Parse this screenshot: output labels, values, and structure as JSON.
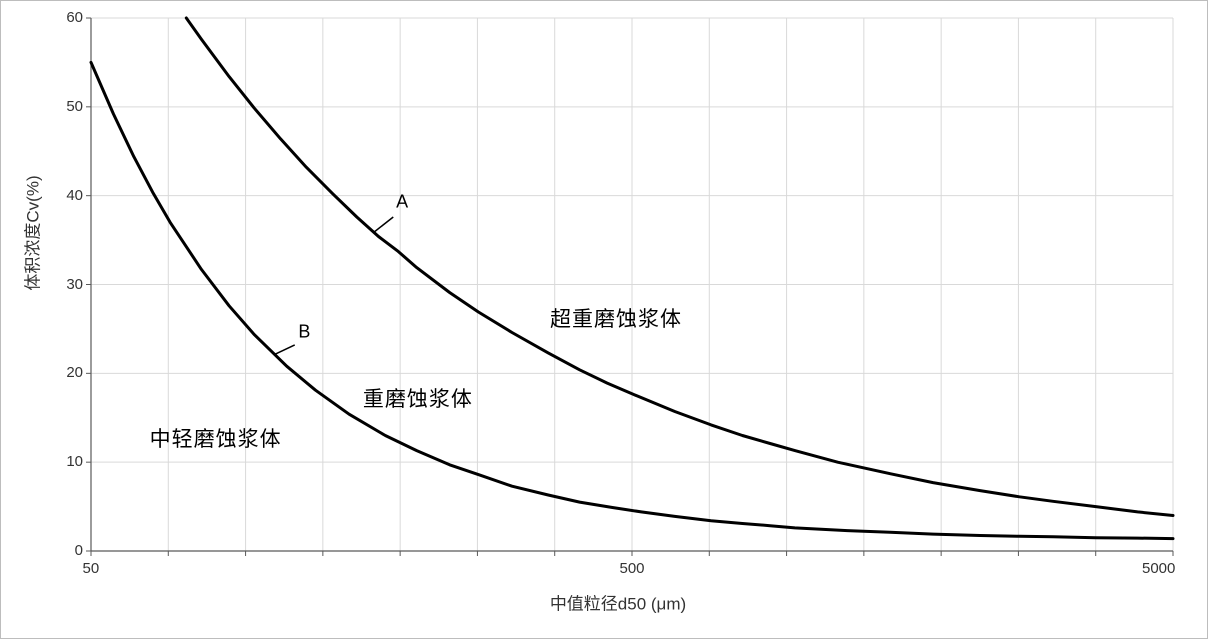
{
  "chart_data": {
    "type": "line",
    "title": "",
    "xlabel": "中值粒径d50 (μm)",
    "ylabel": "体积浓度Cv(%)",
    "x_scale": "log",
    "xlim": [
      50,
      5000
    ],
    "ylim": [
      0,
      60
    ],
    "x_ticks": [
      {
        "value": 50,
        "label": "50"
      },
      {
        "value": 500,
        "label": "500"
      },
      {
        "value": 5000,
        "label": "5000"
      }
    ],
    "y_ticks": [
      0,
      10,
      20,
      30,
      40,
      50,
      60
    ],
    "grid": {
      "vertical_divisions": 14,
      "horizontal_step": 10,
      "gridline_color": "#d9d9d9",
      "axis_color": "#595959"
    },
    "series": [
      {
        "name": "A",
        "color": "#000000",
        "points": [
          [
            75,
            60
          ],
          [
            80,
            57.6
          ],
          [
            90,
            53.4
          ],
          [
            100,
            49.9
          ],
          [
            112,
            46.4
          ],
          [
            125,
            43.2
          ],
          [
            140,
            40.2
          ],
          [
            155,
            37.6
          ],
          [
            170,
            35.4
          ],
          [
            185,
            33.7
          ],
          [
            200,
            31.9
          ],
          [
            230,
            29.1
          ],
          [
            260,
            26.9
          ],
          [
            300,
            24.6
          ],
          [
            350,
            22.3
          ],
          [
            400,
            20.4
          ],
          [
            450,
            18.9
          ],
          [
            500,
            17.7
          ],
          [
            600,
            15.7
          ],
          [
            700,
            14.2
          ],
          [
            800,
            13.0
          ],
          [
            900,
            12.1
          ],
          [
            1000,
            11.3
          ],
          [
            1200,
            10.0
          ],
          [
            1500,
            8.7
          ],
          [
            1800,
            7.7
          ],
          [
            2200,
            6.8
          ],
          [
            2600,
            6.1
          ],
          [
            3000,
            5.6
          ],
          [
            3600,
            5.0
          ],
          [
            4300,
            4.4
          ],
          [
            5000,
            4.0
          ]
        ]
      },
      {
        "name": "B",
        "color": "#000000",
        "points": [
          [
            50,
            55
          ],
          [
            55,
            49.2
          ],
          [
            60,
            44.4
          ],
          [
            65,
            40.4
          ],
          [
            70,
            37.0
          ],
          [
            80,
            31.7
          ],
          [
            90,
            27.6
          ],
          [
            100,
            24.4
          ],
          [
            115,
            20.8
          ],
          [
            130,
            18.1
          ],
          [
            150,
            15.4
          ],
          [
            175,
            13.0
          ],
          [
            200,
            11.3
          ],
          [
            230,
            9.7
          ],
          [
            260,
            8.6
          ],
          [
            300,
            7.3
          ],
          [
            350,
            6.3
          ],
          [
            400,
            5.5
          ],
          [
            460,
            4.9
          ],
          [
            520,
            4.4
          ],
          [
            600,
            3.9
          ],
          [
            700,
            3.4
          ],
          [
            800,
            3.1
          ],
          [
            900,
            2.85
          ],
          [
            1000,
            2.6
          ],
          [
            1250,
            2.3
          ],
          [
            1500,
            2.1
          ],
          [
            1800,
            1.9
          ],
          [
            2200,
            1.75
          ],
          [
            2600,
            1.65
          ],
          [
            3000,
            1.6
          ],
          [
            3600,
            1.5
          ],
          [
            4300,
            1.45
          ],
          [
            5000,
            1.4
          ]
        ]
      }
    ],
    "annotations": [
      {
        "text": "A",
        "x": 188,
        "y": 39.3,
        "kind": "curve-label"
      },
      {
        "text": "B",
        "x": 124,
        "y": 24.6,
        "kind": "curve-label"
      },
      {
        "text": "超重磨蚀浆体",
        "x": 467,
        "y": 26.2,
        "kind": "region-label"
      },
      {
        "text": "重磨蚀浆体",
        "x": 201,
        "y": 17.2,
        "kind": "region-label"
      },
      {
        "text": "中轻磨蚀浆体",
        "x": 85,
        "y": 12.7,
        "kind": "region-label"
      }
    ],
    "leaders": [
      {
        "from": [
          181,
          37.6
        ],
        "to": [
          166,
          35.8
        ]
      },
      {
        "from": [
          119,
          23.2
        ],
        "to": [
          109,
          22.1
        ]
      }
    ]
  }
}
